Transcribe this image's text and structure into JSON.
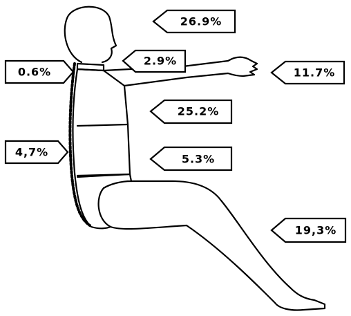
{
  "labels": [
    "26.9%",
    "2.9%",
    "0.6%",
    "11.7%",
    "25.2%",
    "4,7%",
    "5.3%",
    "19,3%"
  ]
}
